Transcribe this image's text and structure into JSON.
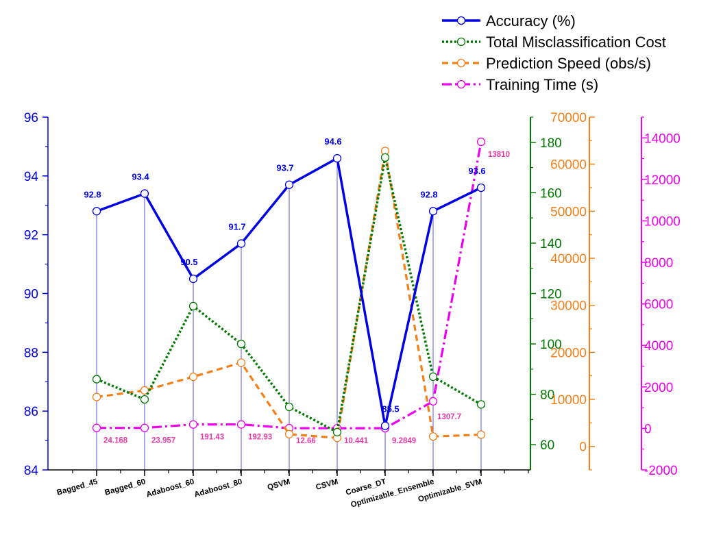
{
  "chart_data": {
    "type": "line",
    "categories": [
      "Bagged_45",
      "Bagged_60",
      "Adaboost_60",
      "Adaboost_80",
      "QSVM",
      "CSVM",
      "Coarse_DT",
      "Optimizable_Ensemble",
      "Optimizable_SVM"
    ],
    "series": [
      {
        "name": "Accuracy (%)",
        "axis": "y1",
        "color": "#0000e6",
        "style": "solid",
        "values": [
          92.8,
          93.4,
          90.5,
          91.7,
          93.7,
          94.6,
          85.5,
          92.8,
          93.6
        ],
        "labels": [
          "92.8",
          "93.4",
          "90.5",
          "91.7",
          "93.7",
          "94.6",
          "85.5",
          "92.8",
          "93.6"
        ]
      },
      {
        "name": "Total Misclassification Cost",
        "axis": "y2",
        "color": "#007a00",
        "style": "dotted",
        "values": [
          86,
          78,
          115,
          100,
          75,
          65,
          174,
          87,
          76
        ]
      },
      {
        "name": "Prediction Speed (obs/s)",
        "axis": "y3",
        "color": "#f57f17",
        "style": "dashed",
        "values": [
          10500,
          11900,
          14800,
          17800,
          2600,
          1800,
          62800,
          2100,
          2500
        ]
      },
      {
        "name": "Training Time (s)",
        "axis": "y4",
        "color": "#ee00ee",
        "style": "dashdot",
        "values": [
          24.168,
          23.957,
          191.43,
          192.93,
          12.66,
          10.441,
          9.2849,
          1307.7,
          13810
        ],
        "labels": [
          "24.168",
          "23.957",
          "191.43",
          "192.93",
          "12.66",
          "10.441",
          "9.2849",
          "1307.7",
          "13810"
        ]
      }
    ],
    "axes": {
      "y1": {
        "range": [
          84,
          96
        ],
        "ticks": [
          84,
          86,
          88,
          90,
          92,
          94,
          96
        ],
        "color": "#0000e6"
      },
      "y2": {
        "range": [
          50,
          190
        ],
        "ticks": [
          60,
          80,
          100,
          120,
          140,
          160,
          180
        ],
        "color": "#007a00"
      },
      "y3": {
        "range": [
          -5000,
          70000
        ],
        "ticks": [
          0,
          10000,
          20000,
          30000,
          40000,
          50000,
          60000,
          70000
        ],
        "color": "#f57f17"
      },
      "y4": {
        "range": [
          -2000,
          15000
        ],
        "ticks": [
          -2000,
          0,
          2000,
          4000,
          6000,
          8000,
          10000,
          12000,
          14000
        ],
        "color": "#ee00ee"
      }
    },
    "legend_position": "top-right",
    "grid": false
  }
}
